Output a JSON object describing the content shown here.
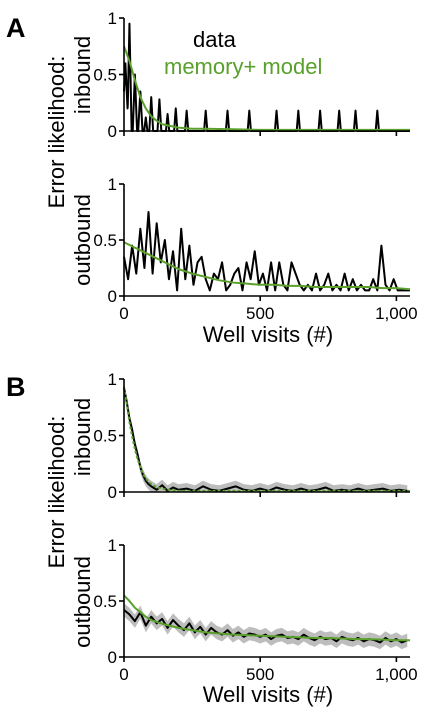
{
  "colors": {
    "data": "#000000",
    "model": "#5aa02c",
    "band": "#bdbdbd"
  },
  "panels": [
    {
      "letter": "A",
      "y_title_line1": "Error likelihood:",
      "x_title": "Well visits (#)"
    },
    {
      "letter": "B",
      "y_title_line1": "Error likelihood:",
      "x_title": "Well visits (#)"
    }
  ],
  "legend": {
    "data_label": "data",
    "model_label": "memory+ model"
  },
  "chart_data": [
    {
      "type": "line",
      "panel": "A",
      "subplot": "inbound",
      "ylabel": "inbound",
      "xlim": [
        0,
        1050
      ],
      "ylim": [
        0,
        1
      ],
      "xticks": [
        0,
        500,
        "1,000"
      ],
      "yticks": [
        "0",
        "0.5",
        "1"
      ],
      "show_xticklabels": false,
      "series": [
        {
          "name": "data",
          "role": "data",
          "peaks": [
            [
              5,
              0.6,
              12
            ],
            [
              20,
              0.95,
              8
            ],
            [
              40,
              0.5,
              8
            ],
            [
              60,
              0.35,
              8
            ],
            [
              80,
              0.12,
              6
            ],
            [
              100,
              0.3,
              7
            ],
            [
              130,
              0.28,
              7
            ],
            [
              160,
              0.15,
              6
            ],
            [
              190,
              0.2,
              6
            ],
            [
              230,
              0.18,
              6
            ],
            [
              300,
              0.18,
              6
            ],
            [
              380,
              0.18,
              6
            ],
            [
              460,
              0.18,
              6
            ],
            [
              560,
              0.18,
              6
            ],
            [
              640,
              0.18,
              6
            ],
            [
              720,
              0.18,
              6
            ],
            [
              790,
              0.18,
              6
            ],
            [
              850,
              0.18,
              6
            ],
            [
              930,
              0.18,
              6
            ]
          ],
          "baseline": 0
        },
        {
          "name": "memory+ model",
          "role": "model",
          "x": [
            0,
            20,
            40,
            60,
            80,
            100,
            120,
            140,
            160,
            180,
            200,
            250,
            300,
            400,
            500,
            600,
            700,
            800,
            900,
            1000,
            1050
          ],
          "y": [
            0.75,
            0.62,
            0.45,
            0.3,
            0.2,
            0.13,
            0.09,
            0.06,
            0.05,
            0.04,
            0.03,
            0.02,
            0.02,
            0.015,
            0.01,
            0.01,
            0.01,
            0.01,
            0.01,
            0.01,
            0.01
          ]
        }
      ]
    },
    {
      "type": "line",
      "panel": "A",
      "subplot": "outbound",
      "ylabel": "outbound",
      "xlim": [
        0,
        1050
      ],
      "ylim": [
        0,
        1
      ],
      "xticks": [
        0,
        500,
        "1,000"
      ],
      "yticks": [
        "0",
        "0.5",
        "1"
      ],
      "show_xticklabels": true,
      "series": [
        {
          "name": "data",
          "role": "data",
          "x": [
            0,
            15,
            30,
            45,
            60,
            75,
            90,
            105,
            120,
            135,
            150,
            165,
            180,
            195,
            210,
            225,
            240,
            255,
            270,
            285,
            300,
            315,
            330,
            345,
            360,
            375,
            390,
            405,
            420,
            435,
            450,
            465,
            480,
            495,
            510,
            525,
            540,
            555,
            570,
            585,
            600,
            615,
            630,
            645,
            660,
            675,
            690,
            705,
            720,
            735,
            750,
            765,
            780,
            795,
            810,
            825,
            840,
            855,
            870,
            885,
            900,
            915,
            930,
            945,
            960,
            975,
            990,
            1005,
            1020,
            1035,
            1050
          ],
          "y": [
            0.35,
            0.15,
            0.45,
            0.2,
            0.6,
            0.25,
            0.75,
            0.2,
            0.65,
            0.3,
            0.5,
            0.15,
            0.4,
            0.05,
            0.6,
            0.15,
            0.45,
            0.1,
            0.3,
            0.35,
            0.15,
            0.05,
            0.2,
            0.15,
            0.3,
            0.05,
            0.1,
            0.2,
            0.25,
            0.05,
            0.3,
            0.15,
            0.4,
            0.1,
            0.2,
            0.05,
            0.3,
            0.05,
            0.3,
            0.1,
            0.05,
            0.3,
            0.2,
            0.1,
            0.05,
            0.1,
            0.05,
            0.2,
            0.05,
            0.1,
            0.2,
            0.05,
            0.1,
            0.05,
            0.2,
            0.05,
            0.15,
            0.05,
            0.1,
            0.05,
            0.05,
            0.15,
            0.05,
            0.45,
            0.1,
            0.05,
            0.15,
            0.05,
            0.05,
            0.05,
            0.05
          ]
        },
        {
          "name": "memory+ model",
          "role": "model",
          "x": [
            0,
            50,
            100,
            150,
            200,
            250,
            300,
            350,
            400,
            450,
            500,
            550,
            600,
            650,
            700,
            750,
            800,
            850,
            900,
            950,
            1000,
            1050
          ],
          "y": [
            0.48,
            0.42,
            0.36,
            0.3,
            0.24,
            0.2,
            0.17,
            0.14,
            0.12,
            0.11,
            0.1,
            0.1,
            0.09,
            0.09,
            0.08,
            0.08,
            0.08,
            0.08,
            0.08,
            0.07,
            0.07,
            0.06
          ]
        }
      ]
    },
    {
      "type": "line",
      "panel": "B",
      "subplot": "inbound",
      "ylabel": "inbound",
      "xlim": [
        0,
        1050
      ],
      "ylim": [
        0,
        1
      ],
      "xticks": [
        0,
        500,
        "1,000"
      ],
      "yticks": [
        "0",
        "0.5",
        "1"
      ],
      "show_xticklabels": false,
      "series": [
        {
          "name": "data",
          "role": "data",
          "band": 0.05,
          "x": [
            0,
            10,
            20,
            30,
            40,
            50,
            60,
            70,
            80,
            90,
            100,
            120,
            140,
            160,
            180,
            200,
            230,
            260,
            290,
            320,
            350,
            380,
            410,
            440,
            470,
            500,
            530,
            560,
            590,
            620,
            650,
            680,
            710,
            740,
            770,
            800,
            830,
            860,
            890,
            920,
            950,
            980,
            1010,
            1040
          ],
          "y": [
            0.92,
            0.8,
            0.65,
            0.55,
            0.42,
            0.33,
            0.22,
            0.15,
            0.1,
            0.07,
            0.05,
            0.02,
            0.06,
            0.01,
            0.04,
            0.02,
            0.03,
            0.01,
            0.05,
            0.02,
            0.01,
            0.03,
            0.05,
            0.02,
            0.01,
            0.03,
            0.01,
            0.04,
            0.02,
            0.01,
            0.03,
            0.01,
            0.02,
            0.04,
            0.01,
            0.02,
            0.01,
            0.03,
            0.01,
            0.02,
            0.03,
            0.01,
            0.02,
            0.01
          ]
        },
        {
          "name": "memory+ model",
          "role": "model",
          "x": [
            0,
            10,
            20,
            30,
            40,
            50,
            60,
            70,
            80,
            90,
            100,
            120,
            140,
            160,
            180,
            200,
            300,
            400,
            500,
            600,
            700,
            800,
            900,
            1000,
            1050
          ],
          "y": [
            0.93,
            0.78,
            0.62,
            0.49,
            0.38,
            0.29,
            0.22,
            0.16,
            0.12,
            0.09,
            0.07,
            0.04,
            0.03,
            0.02,
            0.015,
            0.01,
            0.01,
            0.01,
            0.01,
            0.01,
            0.01,
            0.01,
            0.01,
            0.01,
            0.01
          ]
        }
      ]
    },
    {
      "type": "line",
      "panel": "B",
      "subplot": "outbound",
      "ylabel": "outbound",
      "xlim": [
        0,
        1050
      ],
      "ylim": [
        0,
        1
      ],
      "xticks": [
        0,
        500,
        "1,000"
      ],
      "yticks": [
        "0",
        "0.5",
        "1"
      ],
      "show_xticklabels": true,
      "series": [
        {
          "name": "data",
          "role": "data",
          "band": 0.06,
          "x": [
            0,
            20,
            40,
            60,
            80,
            100,
            120,
            140,
            160,
            180,
            200,
            220,
            240,
            260,
            280,
            300,
            320,
            340,
            360,
            380,
            400,
            420,
            440,
            460,
            480,
            500,
            520,
            540,
            560,
            580,
            600,
            620,
            640,
            660,
            680,
            700,
            720,
            740,
            760,
            780,
            800,
            820,
            840,
            860,
            880,
            900,
            920,
            940,
            960,
            980,
            1000,
            1020,
            1040
          ],
          "y": [
            0.42,
            0.38,
            0.32,
            0.4,
            0.28,
            0.36,
            0.3,
            0.34,
            0.26,
            0.33,
            0.28,
            0.24,
            0.3,
            0.22,
            0.27,
            0.2,
            0.26,
            0.22,
            0.2,
            0.24,
            0.19,
            0.22,
            0.18,
            0.21,
            0.2,
            0.18,
            0.2,
            0.16,
            0.19,
            0.2,
            0.17,
            0.18,
            0.16,
            0.2,
            0.17,
            0.15,
            0.18,
            0.16,
            0.17,
            0.14,
            0.18,
            0.16,
            0.15,
            0.17,
            0.14,
            0.16,
            0.15,
            0.13,
            0.17,
            0.14,
            0.16,
            0.13,
            0.15
          ]
        },
        {
          "name": "memory+ model",
          "role": "model",
          "x": [
            0,
            20,
            40,
            60,
            80,
            100,
            150,
            200,
            250,
            300,
            350,
            400,
            450,
            500,
            550,
            600,
            650,
            700,
            750,
            800,
            850,
            900,
            950,
            1000,
            1050
          ],
          "y": [
            0.55,
            0.5,
            0.44,
            0.4,
            0.36,
            0.33,
            0.29,
            0.26,
            0.24,
            0.22,
            0.21,
            0.2,
            0.195,
            0.19,
            0.185,
            0.18,
            0.175,
            0.17,
            0.17,
            0.165,
            0.16,
            0.16,
            0.155,
            0.15,
            0.15
          ]
        }
      ]
    }
  ]
}
